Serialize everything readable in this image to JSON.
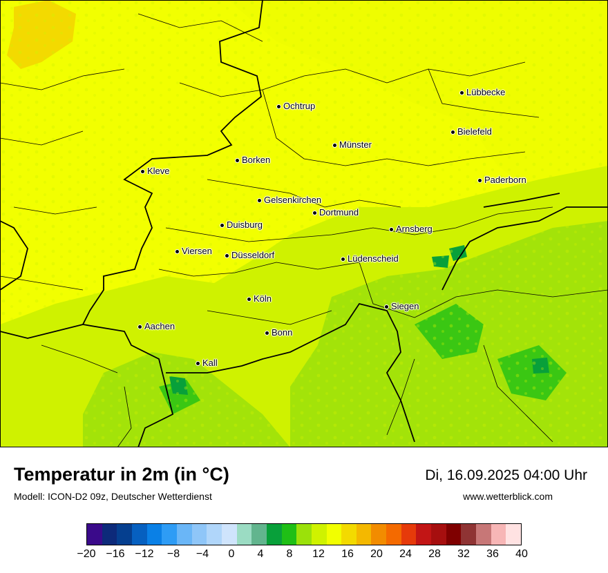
{
  "map": {
    "cities": [
      {
        "name": "Lübbecke"
      },
      {
        "name": "Ochtrup"
      },
      {
        "name": "Bielefeld"
      },
      {
        "name": "Münster"
      },
      {
        "name": "Borken"
      },
      {
        "name": "Kleve"
      },
      {
        "name": "Paderborn"
      },
      {
        "name": "Gelsenkirchen"
      },
      {
        "name": "Dortmund"
      },
      {
        "name": "Duisburg"
      },
      {
        "name": "Arnsberg"
      },
      {
        "name": "Viersen"
      },
      {
        "name": "Düsseldorf"
      },
      {
        "name": "Lüdenscheid"
      },
      {
        "name": "Köln"
      },
      {
        "name": "Siegen"
      },
      {
        "name": "Aachen"
      },
      {
        "name": "Bonn"
      },
      {
        "name": "Kall"
      }
    ]
  },
  "header": {
    "title": "Temperatur in 2m (in °C)",
    "subtitle": "Modell: ICON-D2 09z, Deutscher Wetterdienst",
    "datetime": "Di, 16.09.2025 04:00 Uhr",
    "website": "www.wetterblick.com"
  },
  "legend": {
    "colors": [
      "#3a0a8a",
      "#0d2a7a",
      "#053f8f",
      "#0660c0",
      "#0a80e6",
      "#2e9cf5",
      "#6ab6f7",
      "#8fc6f8",
      "#b0d6fa",
      "#cfe4fc",
      "#9bdcc3",
      "#62b58e",
      "#08a03a",
      "#1fbf16",
      "#9be10a",
      "#cff200",
      "#f2ff00",
      "#f3da00",
      "#f4b800",
      "#f28c00",
      "#f46a00",
      "#e63a0a",
      "#c21515",
      "#a60f0f",
      "#7f0000",
      "#8f3434",
      "#c77777",
      "#f7b6b6",
      "#ffe2e2"
    ],
    "ticks": [
      "−20",
      "−16",
      "−12",
      "−8",
      "−4",
      "0",
      "4",
      "8",
      "12",
      "16",
      "20",
      "24",
      "28",
      "32",
      "36",
      "40"
    ]
  }
}
